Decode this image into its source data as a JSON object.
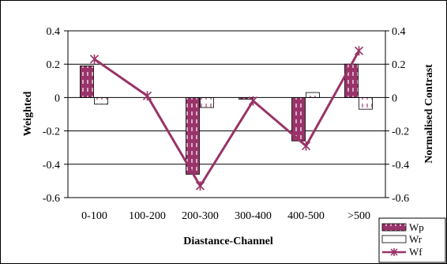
{
  "chart_data": {
    "type": "bar",
    "categories": [
      "0-100",
      "100-200",
      "200-300",
      "300-400",
      "400-500",
      ">500"
    ],
    "series": [
      {
        "name": "Wp",
        "kind": "bar",
        "values": [
          0.19,
          null,
          -0.46,
          -0.01,
          -0.26,
          0.2
        ],
        "color": "#99336a"
      },
      {
        "name": "Wr",
        "kind": "bar",
        "values": [
          -0.04,
          null,
          -0.06,
          null,
          0.03,
          -0.07
        ],
        "color": "#ffffff"
      },
      {
        "name": "Wf",
        "kind": "line",
        "values": [
          0.23,
          0.01,
          -0.53,
          -0.02,
          -0.29,
          0.28
        ],
        "color": "#993366"
      }
    ],
    "xlabel": "Diastance-Channel",
    "ylabel": "Weighted",
    "y2label": "Normalised Contrast",
    "ylim": [
      -0.6,
      0.4
    ],
    "y2lim": [
      -0.6,
      0.4
    ],
    "yticks": [
      "0.4",
      "0.2",
      "0",
      "-0.2",
      "-0.4",
      "-0.6"
    ],
    "y2ticks": [
      "0.4",
      "0.2",
      "0",
      "-0.2",
      "-0.4",
      "-0.6"
    ],
    "ytick_values": [
      0.4,
      0.2,
      0,
      -0.2,
      -0.4,
      -0.6
    ],
    "grid": true,
    "legend_position": "bottom-right"
  }
}
